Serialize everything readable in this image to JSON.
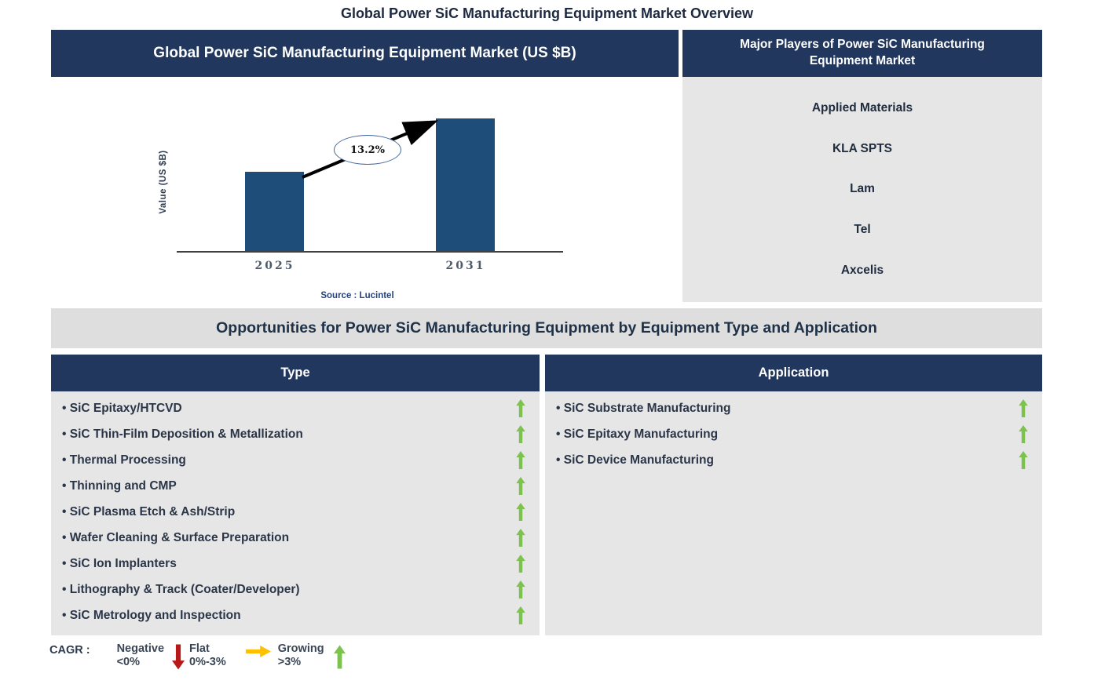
{
  "page_title": "Global Power SiC Manufacturing Equipment Market Overview",
  "colors": {
    "header_navy": "#21375e",
    "bar_blue": "#1f4d7a",
    "panel_gray": "#e7e6e6",
    "band_gray": "#dedede",
    "growing_green": "#7cc24e",
    "negative_red": "#b61918",
    "flat_orange": "#ffc000"
  },
  "chart_panel": {
    "header": "Global Power SiC Manufacturing Equipment Market (US $B)",
    "source": "Source : Lucintel"
  },
  "chart_data": {
    "type": "bar",
    "title": "Global Power SiC Manufacturing Equipment Market (US $B)",
    "categories": [
      "2025",
      "2031"
    ],
    "values": [
      1.0,
      1.67
    ],
    "values_note_unit": "relative height (no numeric value axis shown)",
    "xlabel": "",
    "ylabel": "Value (US $B)",
    "annotation": "13.2%",
    "grid": false,
    "legend_position": "none"
  },
  "players_panel": {
    "header": "Major Players of Power SiC Manufacturing Equipment Market",
    "companies": [
      "Applied Materials",
      "KLA SPTS",
      "Lam",
      "Tel",
      "Axcelis"
    ]
  },
  "opportunities_band": "Opportunities for Power SiC Manufacturing Equipment by Equipment Type and Application",
  "type_panel": {
    "header": "Type",
    "items": [
      "SiC Epitaxy/HTCVD",
      "SiC Thin-Film Deposition & Metallization",
      "Thermal Processing",
      "Thinning and CMP",
      "SiC Plasma Etch & Ash/Strip",
      "Wafer Cleaning & Surface Preparation",
      "SiC Ion Implanters",
      "Lithography & Track (Coater/Developer)",
      "SiC Metrology and Inspection"
    ],
    "item_trend": "growing"
  },
  "application_panel": {
    "header": "Application",
    "items": [
      "SiC Substrate Manufacturing",
      "SiC Epitaxy Manufacturing",
      "SiC Device Manufacturing"
    ],
    "item_trend": "growing"
  },
  "legend": {
    "label": "CAGR :",
    "entries": [
      {
        "name": "Negative",
        "range": "<0%",
        "arrow": "down",
        "color": "#b61918"
      },
      {
        "name": "Flat",
        "range": "0%-3%",
        "arrow": "right",
        "color": "#ffc000"
      },
      {
        "name": "Growing",
        "range": ">3%",
        "arrow": "up",
        "color": "#7cc24e"
      }
    ]
  }
}
